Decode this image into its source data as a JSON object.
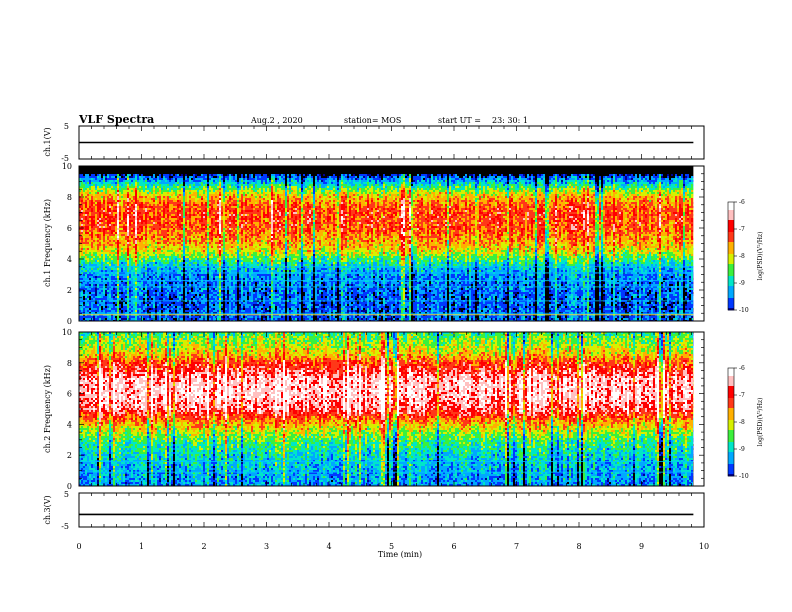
{
  "header": {
    "title": "VLF Spectra",
    "date": "Aug.2 , 2020",
    "station": "station= MOS",
    "start_label": "start UT =",
    "start_time": "23: 30: 1"
  },
  "colors": {
    "spectrum": [
      "#000000",
      "#000090",
      "#0038ff",
      "#00a8ff",
      "#00e6c8",
      "#3cf03c",
      "#d6f000",
      "#ffb000",
      "#ff3818",
      "#ff0000",
      "#ffc0c0",
      "#ffffff"
    ],
    "trace": "#000000",
    "line_cyan": "#00c8ff",
    "line_yellow": "#e8e040"
  },
  "chart_data": [
    {
      "type": "line",
      "panel": "ch1-voltage",
      "ylabel": "ch.1(V)",
      "ylim": [
        -5,
        5
      ],
      "yticks": [
        "5",
        "-5"
      ],
      "xlim": [
        0,
        10
      ],
      "series": [
        {
          "x": [
            0,
            9.83
          ],
          "y": [
            0,
            0
          ]
        }
      ]
    },
    {
      "type": "heatmap",
      "panel": "ch1-spectrogram",
      "ylabel": "ch.1 Frequency (kHz)",
      "ylim": [
        0,
        10
      ],
      "yticks": [
        "0",
        "2",
        "4",
        "6",
        "8",
        "10"
      ],
      "xlim": [
        0,
        10
      ],
      "data_end_min": 9.83,
      "profile": {
        "freq_khz": [
          0,
          1,
          2,
          3,
          3.5,
          4,
          4.5,
          5,
          6,
          7,
          7.5,
          8,
          8.5,
          9,
          9.3,
          9.5,
          10
        ],
        "level": [
          0.12,
          0.12,
          0.14,
          0.18,
          0.26,
          0.38,
          0.52,
          0.6,
          0.7,
          0.72,
          0.68,
          0.58,
          0.42,
          0.22,
          0.1,
          0.0,
          0.0
        ]
      },
      "lines_khz": {
        "cyan": [
          0.5,
          1.3,
          2.2,
          2.6,
          3.1,
          3.5
        ],
        "yellow": [
          0.4
        ]
      },
      "colorbar": {
        "ticks": [
          "-6",
          "-7",
          "-8",
          "-9",
          "-10"
        ],
        "label": "log(PSD)(V²/Hz)"
      }
    },
    {
      "type": "heatmap",
      "panel": "ch2-spectrogram",
      "ylabel": "ch.2 Frequency (kHz)",
      "ylim": [
        0,
        10
      ],
      "yticks": [
        "0",
        "2",
        "4",
        "6",
        "8",
        "10"
      ],
      "xlim": [
        0,
        10
      ],
      "data_end_min": 9.83,
      "profile": {
        "freq_khz": [
          0,
          1,
          2,
          3,
          4,
          4.5,
          5,
          6,
          7,
          8,
          8.5,
          9,
          9.5,
          10
        ],
        "level": [
          0.18,
          0.22,
          0.28,
          0.38,
          0.58,
          0.72,
          0.86,
          0.93,
          0.9,
          0.72,
          0.58,
          0.5,
          0.44,
          0.36
        ]
      },
      "lines_khz": {
        "cyan": [
          0.9,
          1.6
        ],
        "yellow": []
      },
      "colorbar": {
        "ticks": [
          "-6",
          "-7",
          "-8",
          "-9",
          "-10"
        ],
        "label": "log(PSD)(V²/Hz)"
      }
    },
    {
      "type": "line",
      "panel": "ch3-voltage",
      "ylabel": "ch.3(V)",
      "ylim": [
        -5,
        5
      ],
      "yticks": [
        "5",
        "-5"
      ],
      "xlim": [
        0,
        10
      ],
      "xlabel": "Time (min)",
      "xticks": [
        "0",
        "1",
        "2",
        "3",
        "4",
        "5",
        "6",
        "7",
        "8",
        "9",
        "10"
      ],
      "series": [
        {
          "x": [
            0,
            9.83
          ],
          "y": [
            -1.3,
            -1.3
          ]
        }
      ]
    }
  ]
}
